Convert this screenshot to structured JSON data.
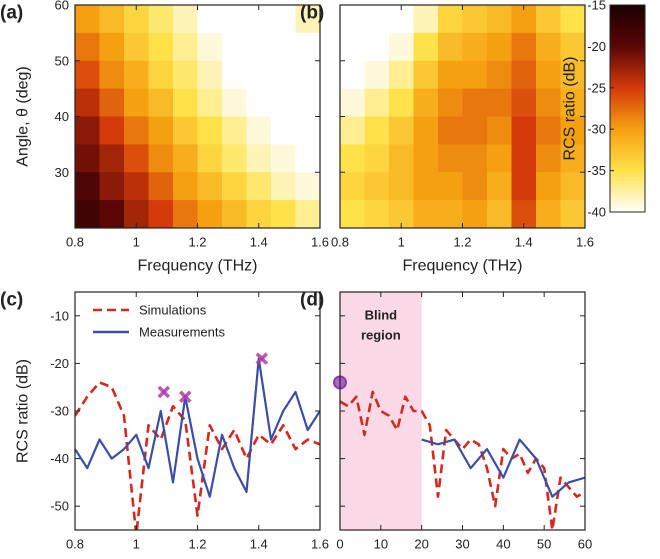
{
  "chart_data": [
    {
      "type": "heatmap",
      "panel_label": "(a)",
      "xlabel": "Frequency (THz)",
      "ylabel": "Angle, θ (deg)",
      "xlim": [
        0.8,
        1.6
      ],
      "ylim": [
        20,
        60
      ],
      "xticks": [
        0.8,
        1,
        1.2,
        1.4,
        1.6
      ],
      "yticks": [
        30,
        40,
        50,
        60
      ],
      "ytick_labels": true,
      "zlim": [
        -40,
        -15
      ],
      "colormap": [
        "#ffffff",
        "#ffe24a",
        "#f5a011",
        "#d43a0a",
        "#5a0606",
        "#1a0000"
      ],
      "x": [
        0.84,
        0.92,
        1.0,
        1.08,
        1.16,
        1.24,
        1.32,
        1.4,
        1.48,
        1.56
      ],
      "y": [
        57.5,
        52.5,
        47.5,
        42.5,
        37.5,
        32.5,
        27.5,
        22.5
      ],
      "z": [
        [
          -30,
          -32,
          -34,
          -36,
          -38,
          -40,
          -40,
          -40,
          -40,
          -38
        ],
        [
          -28,
          -30,
          -33,
          -35,
          -37,
          -39,
          -40,
          -40,
          -40,
          -40
        ],
        [
          -26,
          -29,
          -31,
          -34,
          -36,
          -38,
          -40,
          -40,
          -40,
          -40
        ],
        [
          -24,
          -27,
          -30,
          -32,
          -35,
          -37,
          -39,
          -40,
          -40,
          -40
        ],
        [
          -22,
          -25,
          -28,
          -30,
          -33,
          -35,
          -37,
          -39,
          -40,
          -40
        ],
        [
          -21,
          -23,
          -26,
          -29,
          -31,
          -34,
          -36,
          -38,
          -39,
          -40
        ],
        [
          -19,
          -22,
          -24,
          -27,
          -30,
          -32,
          -34,
          -36,
          -38,
          -39
        ],
        [
          -18,
          -20,
          -23,
          -25,
          -28,
          -30,
          -32,
          -34,
          -35,
          -37
        ]
      ]
    },
    {
      "type": "heatmap",
      "panel_label": "(b)",
      "xlabel": "Frequency (THz)",
      "xlim": [
        0.8,
        1.6
      ],
      "ylim": [
        20,
        60
      ],
      "xticks": [
        0.8,
        1,
        1.2,
        1.4,
        1.6
      ],
      "yticks": [
        30,
        40,
        50,
        60
      ],
      "ytick_labels": false,
      "zlim": [
        -40,
        -15
      ],
      "colormap": [
        "#ffffff",
        "#ffe24a",
        "#f5a011",
        "#d43a0a",
        "#5a0606",
        "#1a0000"
      ],
      "x": [
        0.84,
        0.92,
        1.0,
        1.08,
        1.16,
        1.24,
        1.32,
        1.4,
        1.48,
        1.56
      ],
      "y": [
        57.5,
        52.5,
        47.5,
        42.5,
        37.5,
        32.5,
        27.5,
        22.5
      ],
      "z": [
        [
          -40,
          -40,
          -40,
          -38,
          -34,
          -33,
          -32,
          -30,
          -33,
          -35
        ],
        [
          -40,
          -40,
          -39,
          -35,
          -32,
          -31,
          -30,
          -28,
          -31,
          -33
        ],
        [
          -40,
          -39,
          -37,
          -33,
          -30,
          -30,
          -29,
          -27,
          -30,
          -32
        ],
        [
          -39,
          -37,
          -35,
          -31,
          -29,
          -28,
          -28,
          -26,
          -29,
          -31
        ],
        [
          -37,
          -35,
          -33,
          -30,
          -28,
          -28,
          -29,
          -25,
          -28,
          -30
        ],
        [
          -35,
          -34,
          -32,
          -30,
          -29,
          -29,
          -30,
          -25,
          -29,
          -31
        ],
        [
          -34,
          -33,
          -32,
          -30,
          -30,
          -29,
          -31,
          -25,
          -30,
          -32
        ],
        [
          -35,
          -34,
          -33,
          -31,
          -31,
          -30,
          -32,
          -26,
          -31,
          -33
        ]
      ],
      "colorbar": {
        "label": "RCS ratio (dB)",
        "lim": [
          -40,
          -15
        ],
        "ticks": [
          -15,
          -20,
          -25,
          -30,
          -35,
          -40
        ]
      }
    },
    {
      "type": "line",
      "panel_label": "(c)",
      "xlabel": "Frequency (THz)",
      "ylabel": "RCS ratio (dB)",
      "xlim": [
        0.8,
        1.6
      ],
      "ylim": [
        -55,
        -5
      ],
      "xticks": [
        0.8,
        1,
        1.2,
        1.4,
        1.6
      ],
      "yticks": [
        -10,
        -20,
        -30,
        -40,
        -50
      ],
      "ytick_labels": true,
      "legend": "upper left",
      "series": [
        {
          "name": "Simulations",
          "color": "#d42a1e",
          "dashed": true,
          "x": [
            0.8,
            0.84,
            0.88,
            0.92,
            0.96,
            1.0,
            1.04,
            1.08,
            1.12,
            1.16,
            1.2,
            1.24,
            1.28,
            1.32,
            1.36,
            1.4,
            1.44,
            1.48,
            1.52,
            1.56,
            1.6
          ],
          "values": [
            -31,
            -27,
            -24,
            -25,
            -31,
            -56,
            -33,
            -36,
            -29,
            -32,
            -52,
            -33,
            -38,
            -34,
            -40,
            -35,
            -37,
            -33,
            -38,
            -36,
            -37
          ]
        },
        {
          "name": "Measurements",
          "color": "#3a4ea8",
          "dashed": false,
          "x": [
            0.8,
            0.84,
            0.88,
            0.92,
            0.96,
            1.0,
            1.04,
            1.08,
            1.12,
            1.16,
            1.2,
            1.24,
            1.28,
            1.32,
            1.36,
            1.4,
            1.44,
            1.48,
            1.52,
            1.56,
            1.6
          ],
          "values": [
            -38,
            -42,
            -36,
            -40,
            -38,
            -35,
            -42,
            -30,
            -45,
            -27,
            -40,
            -48,
            -35,
            -42,
            -47,
            -19,
            -36,
            -30,
            -26,
            -34,
            -30
          ]
        }
      ],
      "markers": {
        "shape": "x",
        "color": "#b03aa8",
        "x": [
          1.09,
          1.16,
          1.41
        ],
        "values": [
          -26,
          -27,
          -19
        ]
      }
    },
    {
      "type": "line",
      "panel_label": "(d)",
      "xlabel": "Angle, θ (deg)",
      "xlim": [
        0,
        60
      ],
      "ylim": [
        -55,
        -5
      ],
      "xticks": [
        0,
        10,
        20,
        30,
        40,
        50,
        60
      ],
      "yticks": [
        -10,
        -20,
        -30,
        -40,
        -50
      ],
      "ytick_labels": false,
      "shaded_region": {
        "range": [
          0,
          20
        ],
        "color": "#fbd9e6",
        "label_lines": [
          "Blind",
          "region"
        ]
      },
      "series": [
        {
          "color": "#d42a1e",
          "dashed": true,
          "x": [
            0,
            2,
            4,
            6,
            8,
            10,
            12,
            14,
            16,
            18,
            20,
            22,
            24,
            26,
            28,
            30,
            32,
            34,
            36,
            38,
            40,
            42,
            44,
            46,
            48,
            50,
            52,
            54,
            56,
            58,
            60
          ],
          "values": [
            -28,
            -29,
            -27,
            -35,
            -26,
            -30,
            -31,
            -34,
            -27,
            -30,
            -30,
            -33,
            -48,
            -34,
            -36,
            -38,
            -36,
            -37,
            -42,
            -50,
            -38,
            -40,
            -39,
            -43,
            -40,
            -42,
            -55,
            -44,
            -46,
            -48,
            -47
          ]
        },
        {
          "color": "#3a4ea8",
          "dashed": false,
          "x": [
            20,
            24,
            28,
            32,
            36,
            40,
            44,
            48,
            52,
            56,
            60
          ],
          "values": [
            -36,
            -37,
            -36,
            -42,
            -38,
            -44,
            -36,
            -40,
            -48,
            -45,
            -44
          ]
        }
      ],
      "markers": {
        "shape": "circle",
        "color": "#8a3ab0",
        "x": [
          0
        ],
        "values": [
          -24
        ]
      }
    }
  ]
}
